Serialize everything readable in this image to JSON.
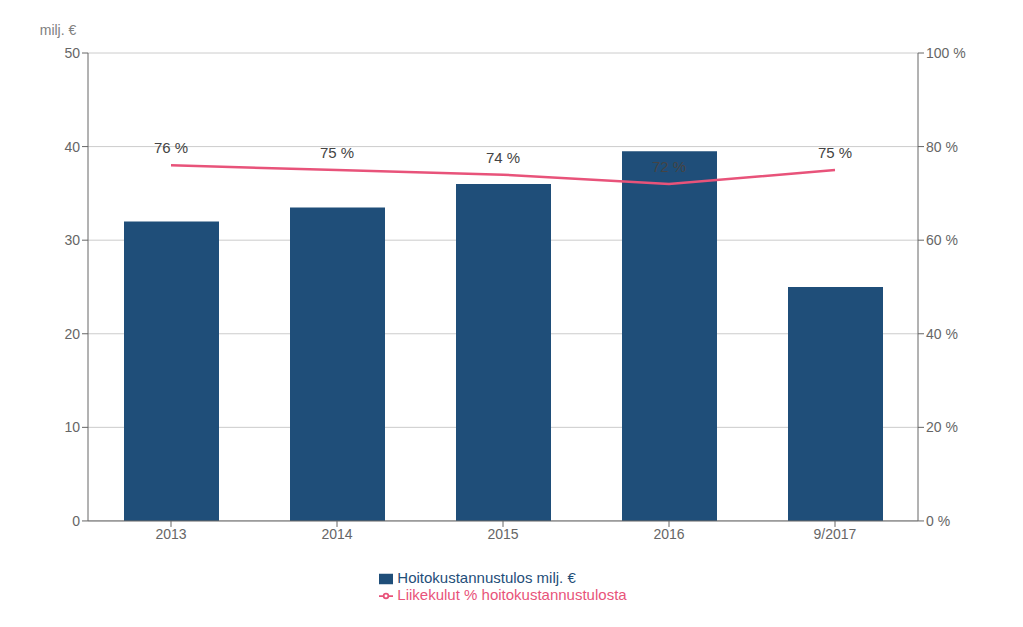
{
  "chart_data": {
    "type": "bar",
    "categories": [
      "2013",
      "2014",
      "2015",
      "2016",
      "9/2017"
    ],
    "ylabel": "milj. €",
    "series": [
      {
        "name": "Hoitokustannustulos milj. €",
        "type": "bar",
        "color": "#1F4E79",
        "values": [
          32.0,
          33.5,
          36.0,
          39.5,
          25.0
        ]
      },
      {
        "name": "Liikekulut % hoitokustannustulosta",
        "type": "line",
        "axis": "y2",
        "color": "#E8537A",
        "values": [
          76,
          75,
          74,
          72,
          75
        ],
        "data_labels": true,
        "value_labels": [
          "76 %",
          "75 %",
          "74 %",
          "72 %",
          "75 %"
        ]
      }
    ],
    "ylim": [
      0,
      50
    ],
    "yticks": [
      0,
      10,
      20,
      30,
      40,
      50
    ],
    "y2lim": [
      0,
      100
    ],
    "y2ticks": [
      {
        "value": 0,
        "label": "0 %"
      },
      {
        "value": 20,
        "label": "20 %"
      },
      {
        "value": 40,
        "label": "40 %"
      },
      {
        "value": 60,
        "label": "60 %"
      },
      {
        "value": 80,
        "label": "80 %"
      },
      {
        "value": 100,
        "label": "100 %"
      }
    ],
    "grid": true,
    "legend": "bottom"
  }
}
